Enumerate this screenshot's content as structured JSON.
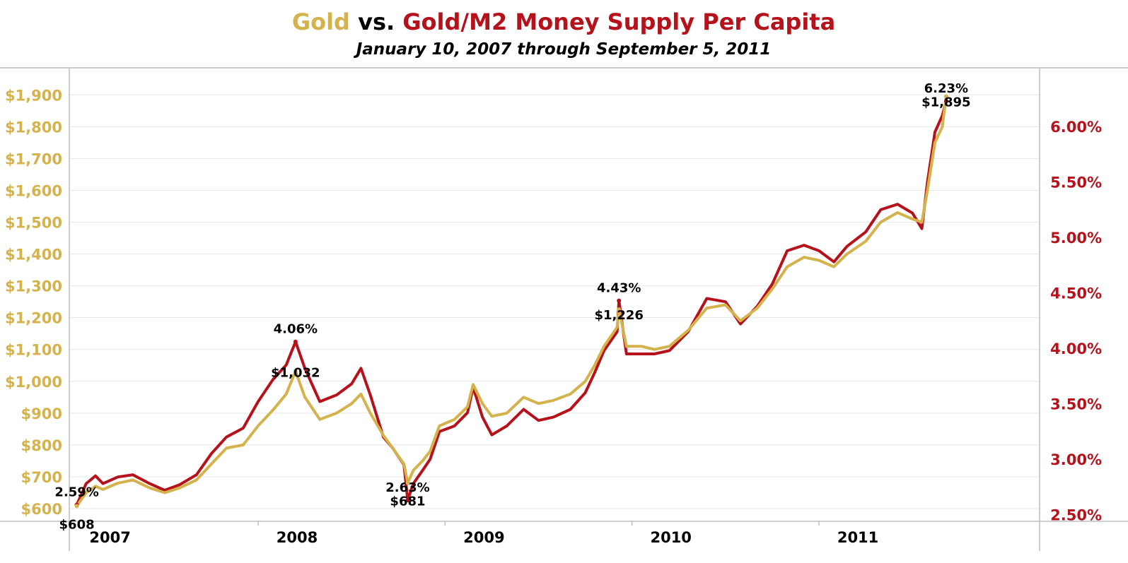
{
  "colors": {
    "gold": "#d4b24c",
    "ratio": "#b5121b",
    "text": "#000000",
    "grid": "#e6e6e6",
    "axis": "#bdbdbd"
  },
  "chart_data": {
    "type": "line",
    "title": {
      "part1": "Gold",
      "part2": " vs. ",
      "part3": "Gold/M2 Money Supply Per Capita"
    },
    "subtitle": "January 10, 2007 through September 5, 2011",
    "x_ticks": [
      "2007",
      "2008",
      "2009",
      "2010",
      "2011"
    ],
    "y_left": {
      "range": [
        560,
        1985
      ],
      "ticks": [
        "$600",
        "$700",
        "$800",
        "$900",
        "$1,000",
        "$1,100",
        "$1,200",
        "$1,300",
        "$1,400",
        "$1,500",
        "$1,600",
        "$1,700",
        "$1,800",
        "$1,900"
      ],
      "tick_values": [
        600,
        700,
        800,
        900,
        1000,
        1100,
        1200,
        1300,
        1400,
        1500,
        1600,
        1700,
        1800,
        1900
      ]
    },
    "y_right": {
      "range": [
        2.44,
        6.53
      ],
      "ticks": [
        "2.50%",
        "3.00%",
        "3.50%",
        "4.00%",
        "4.50%",
        "5.00%",
        "5.50%",
        "6.00%"
      ],
      "tick_values": [
        2.5,
        3.0,
        3.5,
        4.0,
        4.5,
        5.0,
        5.5,
        6.0
      ]
    },
    "x_range": [
      2006.99,
      2012.18
    ],
    "series": [
      {
        "name": "Gold",
        "axis": "left",
        "color": "#d4b24c",
        "points": [
          [
            2007.03,
            608
          ],
          [
            2007.08,
            650
          ],
          [
            2007.13,
            670
          ],
          [
            2007.17,
            660
          ],
          [
            2007.25,
            680
          ],
          [
            2007.33,
            690
          ],
          [
            2007.42,
            665
          ],
          [
            2007.5,
            650
          ],
          [
            2007.58,
            665
          ],
          [
            2007.67,
            690
          ],
          [
            2007.75,
            740
          ],
          [
            2007.83,
            790
          ],
          [
            2007.92,
            800
          ],
          [
            2008.0,
            860
          ],
          [
            2008.08,
            910
          ],
          [
            2008.15,
            960
          ],
          [
            2008.2,
            1032
          ],
          [
            2008.25,
            950
          ],
          [
            2008.33,
            880
          ],
          [
            2008.42,
            900
          ],
          [
            2008.5,
            930
          ],
          [
            2008.55,
            960
          ],
          [
            2008.6,
            900
          ],
          [
            2008.67,
            830
          ],
          [
            2008.72,
            790
          ],
          [
            2008.78,
            740
          ],
          [
            2008.8,
            681
          ],
          [
            2008.83,
            720
          ],
          [
            2008.88,
            750
          ],
          [
            2008.92,
            780
          ],
          [
            2008.97,
            860
          ],
          [
            2009.05,
            880
          ],
          [
            2009.12,
            920
          ],
          [
            2009.15,
            990
          ],
          [
            2009.2,
            930
          ],
          [
            2009.25,
            890
          ],
          [
            2009.33,
            900
          ],
          [
            2009.42,
            950
          ],
          [
            2009.5,
            930
          ],
          [
            2009.58,
            940
          ],
          [
            2009.67,
            960
          ],
          [
            2009.75,
            1000
          ],
          [
            2009.8,
            1050
          ],
          [
            2009.85,
            1110
          ],
          [
            2009.92,
            1170
          ],
          [
            2009.93,
            1226
          ],
          [
            2009.97,
            1110
          ],
          [
            2010.05,
            1110
          ],
          [
            2010.12,
            1100
          ],
          [
            2010.2,
            1110
          ],
          [
            2010.3,
            1160
          ],
          [
            2010.4,
            1230
          ],
          [
            2010.5,
            1240
          ],
          [
            2010.58,
            1190
          ],
          [
            2010.67,
            1230
          ],
          [
            2010.75,
            1290
          ],
          [
            2010.83,
            1360
          ],
          [
            2010.92,
            1390
          ],
          [
            2011.0,
            1380
          ],
          [
            2011.08,
            1360
          ],
          [
            2011.15,
            1400
          ],
          [
            2011.25,
            1440
          ],
          [
            2011.33,
            1500
          ],
          [
            2011.42,
            1530
          ],
          [
            2011.5,
            1510
          ],
          [
            2011.55,
            1500
          ],
          [
            2011.58,
            1600
          ],
          [
            2011.62,
            1750
          ],
          [
            2011.66,
            1800
          ],
          [
            2011.68,
            1895
          ]
        ]
      },
      {
        "name": "Gold/M2 Money Supply Per Capita",
        "axis": "right",
        "color": "#b5121b",
        "points": [
          [
            2007.03,
            2.59
          ],
          [
            2007.08,
            2.78
          ],
          [
            2007.13,
            2.85
          ],
          [
            2007.17,
            2.78
          ],
          [
            2007.25,
            2.84
          ],
          [
            2007.33,
            2.86
          ],
          [
            2007.42,
            2.78
          ],
          [
            2007.5,
            2.72
          ],
          [
            2007.58,
            2.77
          ],
          [
            2007.67,
            2.86
          ],
          [
            2007.75,
            3.05
          ],
          [
            2007.83,
            3.2
          ],
          [
            2007.92,
            3.28
          ],
          [
            2008.0,
            3.52
          ],
          [
            2008.08,
            3.72
          ],
          [
            2008.15,
            3.85
          ],
          [
            2008.2,
            4.06
          ],
          [
            2008.25,
            3.82
          ],
          [
            2008.33,
            3.52
          ],
          [
            2008.42,
            3.58
          ],
          [
            2008.5,
            3.68
          ],
          [
            2008.55,
            3.82
          ],
          [
            2008.6,
            3.58
          ],
          [
            2008.67,
            3.2
          ],
          [
            2008.72,
            3.1
          ],
          [
            2008.78,
            2.95
          ],
          [
            2008.8,
            2.63
          ],
          [
            2008.83,
            2.78
          ],
          [
            2008.88,
            2.9
          ],
          [
            2008.92,
            3.0
          ],
          [
            2008.97,
            3.25
          ],
          [
            2009.05,
            3.3
          ],
          [
            2009.12,
            3.42
          ],
          [
            2009.15,
            3.65
          ],
          [
            2009.2,
            3.38
          ],
          [
            2009.25,
            3.22
          ],
          [
            2009.33,
            3.3
          ],
          [
            2009.42,
            3.45
          ],
          [
            2009.5,
            3.35
          ],
          [
            2009.58,
            3.38
          ],
          [
            2009.67,
            3.45
          ],
          [
            2009.75,
            3.6
          ],
          [
            2009.8,
            3.78
          ],
          [
            2009.85,
            3.98
          ],
          [
            2009.92,
            4.15
          ],
          [
            2009.93,
            4.43
          ],
          [
            2009.97,
            3.95
          ],
          [
            2010.05,
            3.95
          ],
          [
            2010.12,
            3.95
          ],
          [
            2010.2,
            3.98
          ],
          [
            2010.3,
            4.15
          ],
          [
            2010.4,
            4.45
          ],
          [
            2010.5,
            4.42
          ],
          [
            2010.58,
            4.22
          ],
          [
            2010.67,
            4.38
          ],
          [
            2010.75,
            4.58
          ],
          [
            2010.83,
            4.88
          ],
          [
            2010.92,
            4.93
          ],
          [
            2011.0,
            4.88
          ],
          [
            2011.08,
            4.78
          ],
          [
            2011.15,
            4.92
          ],
          [
            2011.25,
            5.05
          ],
          [
            2011.33,
            5.25
          ],
          [
            2011.42,
            5.3
          ],
          [
            2011.5,
            5.22
          ],
          [
            2011.55,
            5.08
          ],
          [
            2011.58,
            5.5
          ],
          [
            2011.62,
            5.95
          ],
          [
            2011.66,
            6.1
          ],
          [
            2011.68,
            6.23
          ]
        ]
      }
    ],
    "annotations": [
      {
        "text": "2.59%",
        "series": "ratio",
        "x": 2007.03,
        "y": 2.59
      },
      {
        "text": "$608",
        "series": "gold",
        "x": 2007.03,
        "y": 608
      },
      {
        "text": "4.06%",
        "series": "ratio",
        "x": 2008.2,
        "y": 4.06
      },
      {
        "text": "$1,032",
        "series": "gold",
        "x": 2008.2,
        "y": 1032
      },
      {
        "text": "2.63%",
        "series": "ratio",
        "x": 2008.8,
        "y": 2.63
      },
      {
        "text": "$681",
        "series": "gold",
        "x": 2008.8,
        "y": 681
      },
      {
        "text": "4.43%",
        "series": "ratio",
        "x": 2009.93,
        "y": 4.43
      },
      {
        "text": "$1,226",
        "series": "gold",
        "x": 2009.93,
        "y": 1226
      },
      {
        "text": "6.23%",
        "series": "ratio",
        "x": 2011.68,
        "y": 6.23
      },
      {
        "text": "$1,895",
        "series": "gold",
        "x": 2011.68,
        "y": 1895
      }
    ]
  }
}
